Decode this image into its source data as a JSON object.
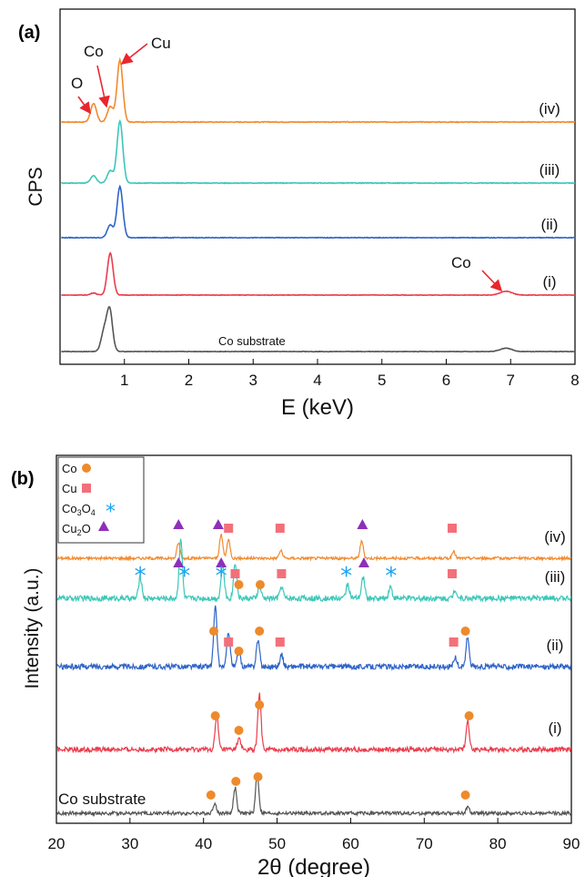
{
  "chart_data": [
    {
      "panel": "(a)",
      "type": "line",
      "xlabel": "E (keV)",
      "ylabel": "CPS",
      "xlim": [
        0,
        8
      ],
      "xticks": [
        "1",
        "2",
        "3",
        "4",
        "5",
        "6",
        "7",
        "8"
      ],
      "yticks_shown": false,
      "series": [
        {
          "name": "(iv)",
          "color": "#f28a2e",
          "peaks": [
            {
              "x": 0.52,
              "h": 0.3
            },
            {
              "x": 0.78,
              "h": 0.25
            },
            {
              "x": 0.93,
              "h": 1.0
            }
          ]
        },
        {
          "name": "(iii)",
          "color": "#3cc7b8",
          "peaks": [
            {
              "x": 0.52,
              "h": 0.12
            },
            {
              "x": 0.78,
              "h": 0.2
            },
            {
              "x": 0.93,
              "h": 1.0
            }
          ]
        },
        {
          "name": "(ii)",
          "color": "#2f64c8",
          "peaks": [
            {
              "x": 0.78,
              "h": 0.25
            },
            {
              "x": 0.93,
              "h": 1.0
            }
          ]
        },
        {
          "name": "(i)",
          "color": "#ea3d4c",
          "peaks": [
            {
              "x": 0.52,
              "h": 0.05
            },
            {
              "x": 0.78,
              "h": 1.0
            },
            {
              "x": 6.93,
              "h": 0.09
            }
          ]
        },
        {
          "name": "Co substrate",
          "color": "#555555",
          "peaks": [
            {
              "x": 0.68,
              "h": 0.45
            },
            {
              "x": 0.77,
              "h": 1.0
            },
            {
              "x": 6.93,
              "h": 0.08
            }
          ]
        }
      ],
      "annotations": [
        "O",
        "Co",
        "Cu",
        "Co"
      ]
    },
    {
      "panel": "(b)",
      "type": "line",
      "xlabel": "2θ (degree)",
      "ylabel": "Intensity (a.u.)",
      "xlim": [
        20,
        90
      ],
      "xticks": [
        "20",
        "30",
        "40",
        "50",
        "60",
        "70",
        "80",
        "90"
      ],
      "yticks_shown": false,
      "legend": [
        {
          "label": "Co",
          "marker": "circle",
          "color": "#ee8a2a"
        },
        {
          "label": "Cu",
          "marker": "square",
          "color": "#f2707a"
        },
        {
          "label": "Co3O4",
          "marker": "asterisk",
          "color": "#1aa3f0"
        },
        {
          "label": "Cu2O",
          "marker": "triangle",
          "color": "#8e2fb8"
        }
      ],
      "series": [
        {
          "name": "(iv)",
          "color": "#f28a2e",
          "peaks": [
            {
              "x": 36.6,
              "h": 0.5
            },
            {
              "x": 42.4,
              "h": 0.75
            },
            {
              "x": 43.4,
              "h": 0.6
            },
            {
              "x": 50.5,
              "h": 0.25
            },
            {
              "x": 61.5,
              "h": 0.55
            },
            {
              "x": 74.0,
              "h": 0.2
            }
          ]
        },
        {
          "name": "(iii)",
          "color": "#3cc7b8",
          "peaks": [
            {
              "x": 31.4,
              "h": 0.35
            },
            {
              "x": 36.9,
              "h": 1.0
            },
            {
              "x": 42.6,
              "h": 0.55
            },
            {
              "x": 44.3,
              "h": 0.6
            },
            {
              "x": 47.6,
              "h": 0.2
            },
            {
              "x": 50.6,
              "h": 0.2
            },
            {
              "x": 59.6,
              "h": 0.25
            },
            {
              "x": 61.7,
              "h": 0.35
            },
            {
              "x": 65.4,
              "h": 0.2
            },
            {
              "x": 74.2,
              "h": 0.15
            }
          ]
        },
        {
          "name": "(ii)",
          "color": "#2f64c8",
          "peaks": [
            {
              "x": 41.6,
              "h": 1.0
            },
            {
              "x": 43.4,
              "h": 0.6
            },
            {
              "x": 44.8,
              "h": 0.25
            },
            {
              "x": 47.4,
              "h": 0.45
            },
            {
              "x": 50.6,
              "h": 0.2
            },
            {
              "x": 74.2,
              "h": 0.15
            },
            {
              "x": 75.9,
              "h": 0.5
            }
          ]
        },
        {
          "name": "(i)",
          "color": "#ea3d4c",
          "peaks": [
            {
              "x": 41.8,
              "h": 0.6
            },
            {
              "x": 44.8,
              "h": 0.2
            },
            {
              "x": 47.6,
              "h": 1.0
            },
            {
              "x": 75.9,
              "h": 0.55
            }
          ]
        },
        {
          "name": "Co substrate",
          "color": "#555555",
          "peaks": [
            {
              "x": 41.5,
              "h": 0.25
            },
            {
              "x": 44.3,
              "h": 0.65
            },
            {
              "x": 47.3,
              "h": 1.0
            },
            {
              "x": 75.9,
              "h": 0.15
            }
          ]
        }
      ],
      "markers": [
        {
          "series": "(iv)",
          "type": "triangle",
          "x": 36.6
        },
        {
          "series": "(iv)",
          "type": "triangle",
          "x": 42.0
        },
        {
          "series": "(iv)",
          "type": "square",
          "x": 43.4
        },
        {
          "series": "(iv)",
          "type": "square",
          "x": 50.4
        },
        {
          "series": "(iv)",
          "type": "triangle",
          "x": 61.6
        },
        {
          "series": "(iv)",
          "type": "square",
          "x": 73.8
        },
        {
          "series": "(iii)",
          "type": "asterisk",
          "x": 31.4
        },
        {
          "series": "(iii)",
          "type": "triangle",
          "x": 36.6
        },
        {
          "series": "(iii)",
          "type": "asterisk",
          "x": 37.4
        },
        {
          "series": "(iii)",
          "type": "triangle",
          "x": 42.4
        },
        {
          "series": "(iii)",
          "type": "asterisk",
          "x": 42.4
        },
        {
          "series": "(iii)",
          "type": "square",
          "x": 44.3
        },
        {
          "series": "(iii)",
          "type": "circle",
          "x": 44.8
        },
        {
          "series": "(iii)",
          "type": "circle",
          "x": 47.7
        },
        {
          "series": "(iii)",
          "type": "square",
          "x": 50.6
        },
        {
          "series": "(iii)",
          "type": "asterisk",
          "x": 59.4
        },
        {
          "series": "(iii)",
          "type": "triangle",
          "x": 61.8
        },
        {
          "series": "(iii)",
          "type": "asterisk",
          "x": 65.5
        },
        {
          "series": "(iii)",
          "type": "square",
          "x": 73.8
        },
        {
          "series": "(ii)",
          "type": "circle",
          "x": 41.4
        },
        {
          "series": "(ii)",
          "type": "square",
          "x": 43.4
        },
        {
          "series": "(ii)",
          "type": "circle",
          "x": 44.8
        },
        {
          "series": "(ii)",
          "type": "circle",
          "x": 47.6
        },
        {
          "series": "(ii)",
          "type": "square",
          "x": 50.4
        },
        {
          "series": "(ii)",
          "type": "square",
          "x": 74.0
        },
        {
          "series": "(ii)",
          "type": "circle",
          "x": 75.6
        },
        {
          "series": "(i)",
          "type": "circle",
          "x": 41.6
        },
        {
          "series": "(i)",
          "type": "circle",
          "x": 44.8
        },
        {
          "series": "(i)",
          "type": "circle",
          "x": 47.6
        },
        {
          "series": "(i)",
          "type": "circle",
          "x": 76.1
        },
        {
          "series": "Co substrate",
          "type": "circle",
          "x": 41.0
        },
        {
          "series": "Co substrate",
          "type": "circle",
          "x": 44.4
        },
        {
          "series": "Co substrate",
          "type": "circle",
          "x": 47.4
        },
        {
          "series": "Co substrate",
          "type": "circle",
          "x": 75.6
        }
      ]
    }
  ]
}
